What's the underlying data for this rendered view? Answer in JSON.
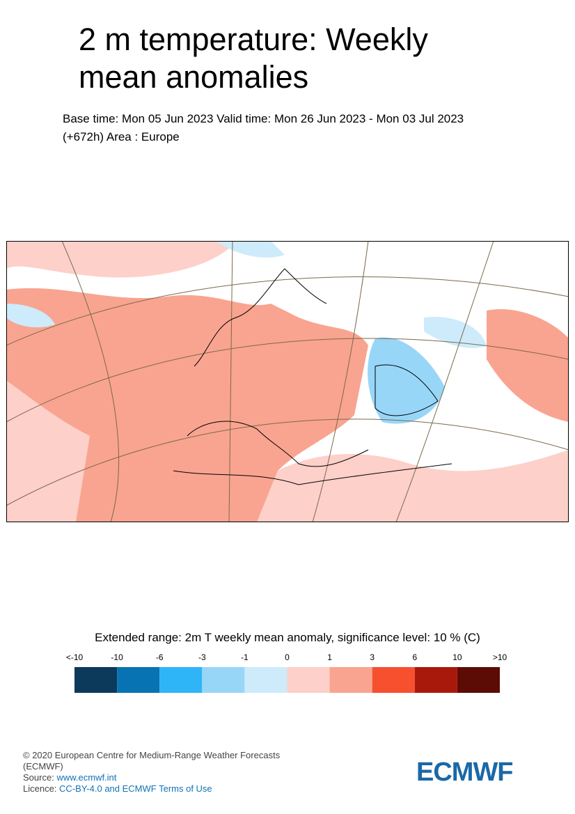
{
  "title": "2 m temperature: Weekly mean anomalies",
  "subtitle_lines": [
    "Base time: Mon 05 Jun 2023 Valid time: Mon 26 Jun 2023 - Mon 03 Jul 2023",
    "(+672h) Area : Europe"
  ],
  "legend": {
    "title": "Extended range: 2m T weekly mean anomaly, significance level: 10 % (C)",
    "labels": [
      "<-10",
      "-10",
      "-6",
      "-3",
      "-1",
      "0",
      "1",
      "3",
      "6",
      "10",
      ">10"
    ],
    "colors": [
      "#0b3a5b",
      "#0873b3",
      "#2eb5f7",
      "#98d6f8",
      "#cdebfb",
      "#fdd0c9",
      "#f9a490",
      "#f6502f",
      "#a9190b",
      "#5c0b05"
    ]
  },
  "footer": {
    "copyright": "© 2020 European Centre for Medium-Range Weather Forecasts (ECMWF)",
    "source_label": "Source:",
    "source_link": "www.ecmwf.int",
    "licence_label": "Licence:",
    "licence_link": "CC-BY-4.0 and ECMWF Terms of Use"
  },
  "logo": "ECMWF"
}
